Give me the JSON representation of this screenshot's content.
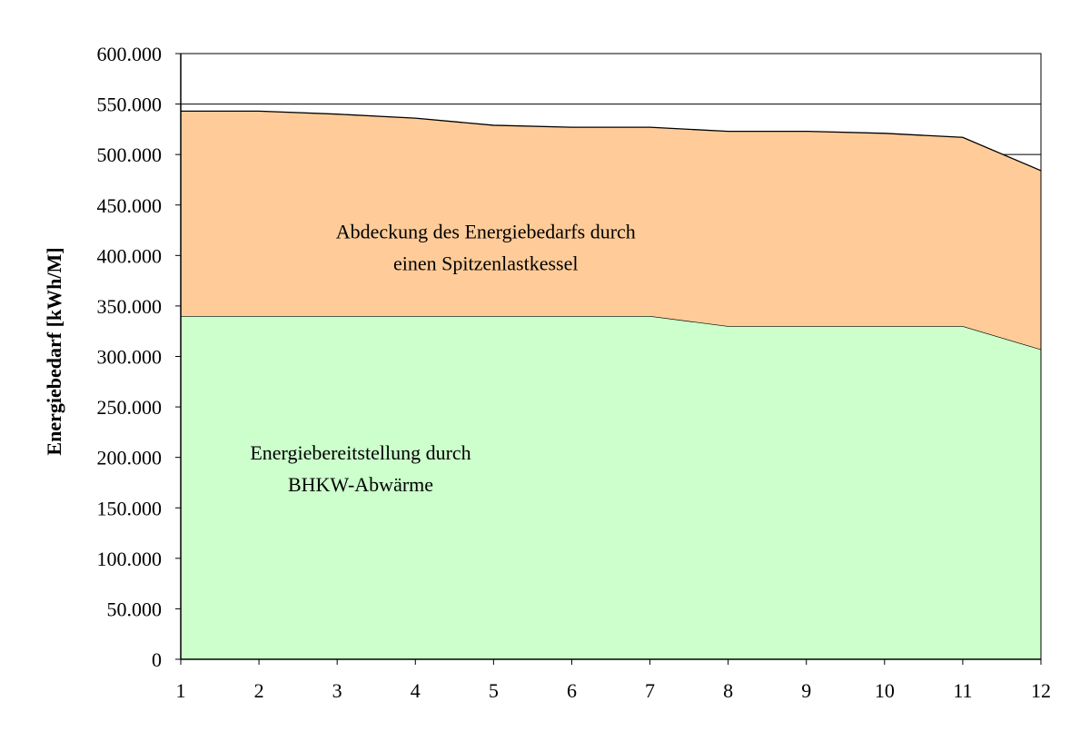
{
  "chart_data": {
    "type": "area",
    "stacked": true,
    "title": "",
    "xlabel": "",
    "ylabel": "Energiebedarf [kWh/M]",
    "x": [
      1,
      2,
      3,
      4,
      5,
      6,
      7,
      8,
      9,
      10,
      11,
      12
    ],
    "xlim": [
      1,
      12
    ],
    "ylim": [
      0,
      600000
    ],
    "ytick_step": 50000,
    "ytick_labels": [
      "0",
      "50.000",
      "100.000",
      "150.000",
      "200.000",
      "250.000",
      "300.000",
      "350.000",
      "400.000",
      "450.000",
      "500.000",
      "550.000",
      "600.000"
    ],
    "xtick_labels": [
      "1",
      "2",
      "3",
      "4",
      "5",
      "6",
      "7",
      "8",
      "9",
      "10",
      "11",
      "12"
    ],
    "gridlines": [
      500000,
      550000
    ],
    "series": [
      {
        "name": "Energiebereitstellung durch BHKW-Abwärme",
        "color": "#ccffcc",
        "values": [
          340000,
          340000,
          340000,
          340000,
          340000,
          340000,
          340000,
          330000,
          330000,
          330000,
          330000,
          307000
        ]
      },
      {
        "name": "Abdeckung des Energiebedarfs durch einen Spitzenlastkessel",
        "color": "#ffcc99",
        "values": [
          203000,
          203000,
          200000,
          196000,
          189000,
          187000,
          187000,
          193000,
          193000,
          191000,
          187000,
          177000
        ]
      }
    ],
    "annotations": [
      {
        "lines": [
          "Abdeckung des Energiebedarfs durch",
          "einen Spitzenlastkessel"
        ],
        "x": 4.9,
        "y": 417000
      },
      {
        "lines": [
          "Energiebereitstellung durch",
          "BHKW-Abwärme"
        ],
        "x": 3.3,
        "y": 198000
      }
    ]
  }
}
